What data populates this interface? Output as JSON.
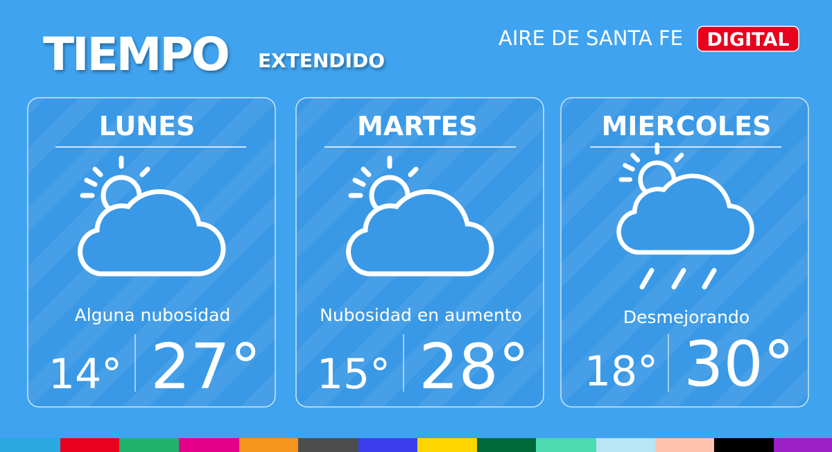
{
  "header": {
    "title": "TIEMPO",
    "subtitle": "EXTENDIDO",
    "brand": "AIRE DE SANTA FE",
    "badge": "DIGITAL"
  },
  "days": [
    {
      "name": "LUNES",
      "description": "Alguna nubosidad",
      "min": "14°",
      "max": "27°"
    },
    {
      "name": "MARTES",
      "description": "Nubosidad en aumento",
      "min": "15°",
      "max": "28°"
    },
    {
      "name": "MIERCOLES",
      "description": "Desmejorando",
      "min": "18°",
      "max": "30°"
    }
  ]
}
